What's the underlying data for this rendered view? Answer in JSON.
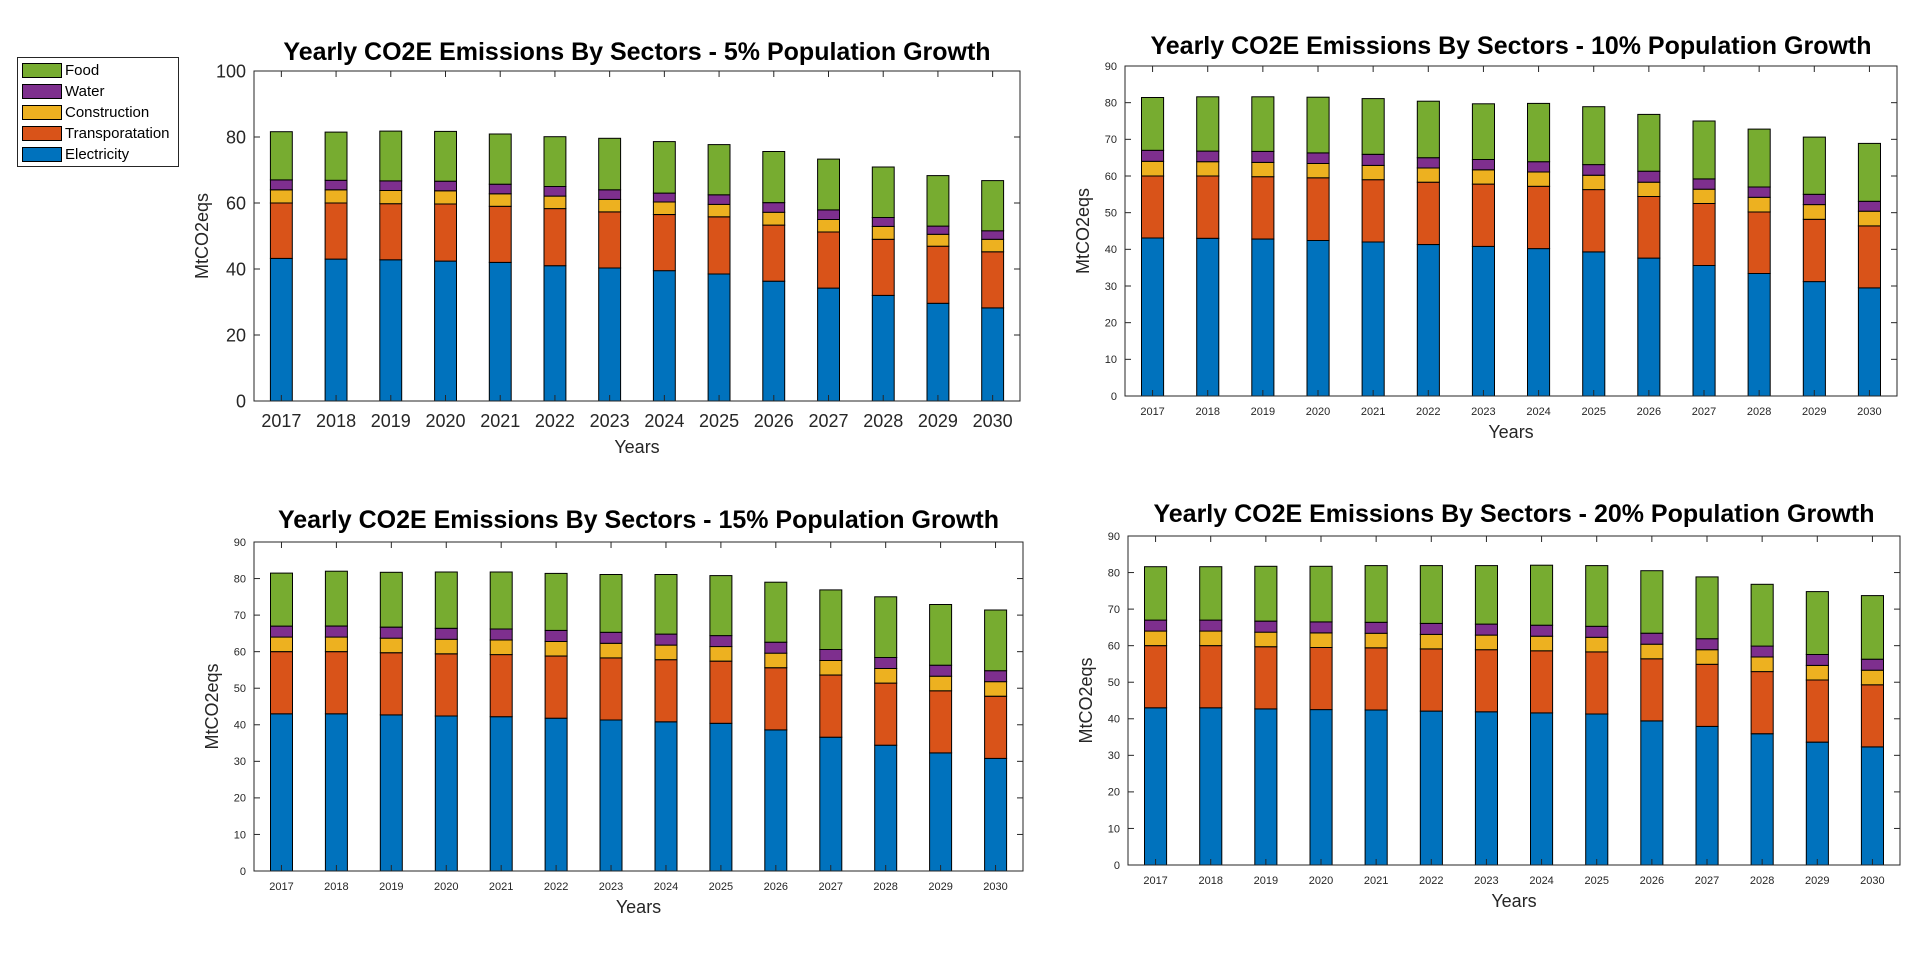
{
  "legend": {
    "items": [
      {
        "label": "Food",
        "color": "#77AC30"
      },
      {
        "label": "Water",
        "color": "#7E2F8E"
      },
      {
        "label": "Construction",
        "color": "#EDB120"
      },
      {
        "label": "Transporatation",
        "color": "#D95319"
      },
      {
        "label": "Electricity",
        "color": "#0072BD"
      }
    ]
  },
  "chart_data": [
    {
      "type": "bar",
      "stacked": true,
      "title": "Yearly CO2E Emissions By Sectors - 5% Population Growth",
      "xlabel": "Years",
      "ylabel": "MtCO2eqs",
      "ylim": [
        0,
        100
      ],
      "yticks": [
        0,
        20,
        40,
        60,
        80,
        100
      ],
      "categories": [
        "2017",
        "2018",
        "2019",
        "2020",
        "2021",
        "2022",
        "2023",
        "2024",
        "2025",
        "2026",
        "2027",
        "2028",
        "2029",
        "2030"
      ],
      "series": [
        {
          "name": "Electricity",
          "color": "#0072BD",
          "values": [
            43.2,
            43.0,
            42.8,
            42.4,
            42.0,
            41.0,
            40.3,
            39.5,
            38.5,
            36.3,
            34.2,
            32.0,
            29.6,
            28.2
          ]
        },
        {
          "name": "Transporatation",
          "color": "#D95319",
          "values": [
            16.8,
            17.0,
            17.0,
            17.3,
            17.0,
            17.3,
            17.0,
            17.0,
            17.3,
            17.0,
            17.0,
            17.0,
            17.3,
            17.0
          ]
        },
        {
          "name": "Construction",
          "color": "#EDB120",
          "values": [
            4.0,
            4.0,
            4.0,
            4.0,
            3.8,
            3.8,
            3.8,
            3.8,
            3.8,
            3.9,
            3.8,
            3.9,
            3.6,
            3.8
          ]
        },
        {
          "name": "Water",
          "color": "#7E2F8E",
          "values": [
            3.0,
            2.9,
            2.9,
            2.9,
            2.9,
            2.9,
            2.9,
            2.7,
            2.9,
            2.9,
            2.9,
            2.7,
            2.5,
            2.6
          ]
        },
        {
          "name": "Food",
          "color": "#77AC30",
          "values": [
            14.6,
            14.6,
            15.1,
            15.1,
            15.2,
            15.1,
            15.6,
            15.6,
            15.2,
            15.5,
            15.4,
            15.3,
            15.3,
            15.2
          ]
        }
      ]
    },
    {
      "type": "bar",
      "stacked": true,
      "title": "Yearly CO2E Emissions By Sectors - 10% Population Growth",
      "xlabel": "Years",
      "ylabel": "MtCO2eqs",
      "ylim": [
        0,
        90
      ],
      "yticks": [
        0,
        10,
        20,
        30,
        40,
        50,
        60,
        70,
        80,
        90
      ],
      "categories": [
        "2017",
        "2018",
        "2019",
        "2020",
        "2021",
        "2022",
        "2023",
        "2024",
        "2025",
        "2026",
        "2027",
        "2028",
        "2029",
        "2030"
      ],
      "series": [
        {
          "name": "Electricity",
          "color": "#0072BD",
          "values": [
            43.1,
            43.0,
            42.8,
            42.4,
            42.0,
            41.3,
            40.8,
            40.2,
            39.3,
            37.6,
            35.6,
            33.4,
            31.2,
            29.5
          ]
        },
        {
          "name": "Transporatation",
          "color": "#D95319",
          "values": [
            16.9,
            17.0,
            17.0,
            17.1,
            17.0,
            17.0,
            17.0,
            17.0,
            17.0,
            16.8,
            16.9,
            16.8,
            17.0,
            16.9
          ]
        },
        {
          "name": "Construction",
          "color": "#EDB120",
          "values": [
            4.0,
            3.9,
            3.9,
            3.9,
            3.9,
            3.9,
            3.9,
            3.9,
            3.9,
            3.9,
            3.9,
            4.0,
            4.0,
            4.0
          ]
        },
        {
          "name": "Water",
          "color": "#7E2F8E",
          "values": [
            3.0,
            2.9,
            3.0,
            2.9,
            3.0,
            2.8,
            2.8,
            2.8,
            2.9,
            3.0,
            2.8,
            2.8,
            2.8,
            2.7
          ]
        },
        {
          "name": "Food",
          "color": "#77AC30",
          "values": [
            14.4,
            14.8,
            14.9,
            15.2,
            15.2,
            15.4,
            15.2,
            15.9,
            15.8,
            15.5,
            15.8,
            15.8,
            15.6,
            15.8
          ]
        }
      ]
    },
    {
      "type": "bar",
      "stacked": true,
      "title": "Yearly CO2E Emissions By Sectors - 15% Population Growth",
      "xlabel": "Years",
      "ylabel": "MtCO2eqs",
      "ylim": [
        0,
        90
      ],
      "yticks": [
        0,
        10,
        20,
        30,
        40,
        50,
        60,
        70,
        80,
        90
      ],
      "categories": [
        "2017",
        "2018",
        "2019",
        "2020",
        "2021",
        "2022",
        "2023",
        "2024",
        "2025",
        "2026",
        "2027",
        "2028",
        "2029",
        "2030"
      ],
      "series": [
        {
          "name": "Electricity",
          "color": "#0072BD",
          "values": [
            43.0,
            43.0,
            42.7,
            42.4,
            42.2,
            41.8,
            41.3,
            40.8,
            40.4,
            38.6,
            36.6,
            34.4,
            32.3,
            30.8
          ]
        },
        {
          "name": "Transporatation",
          "color": "#D95319",
          "values": [
            17.0,
            17.0,
            17.0,
            17.0,
            17.0,
            17.0,
            17.0,
            17.0,
            17.0,
            17.0,
            17.0,
            17.0,
            17.0,
            17.0
          ]
        },
        {
          "name": "Construction",
          "color": "#EDB120",
          "values": [
            4.0,
            4.0,
            4.0,
            4.0,
            4.0,
            4.0,
            4.0,
            4.0,
            4.0,
            4.0,
            4.0,
            4.0,
            4.0,
            4.0
          ]
        },
        {
          "name": "Water",
          "color": "#7E2F8E",
          "values": [
            3.0,
            3.0,
            3.0,
            3.0,
            3.0,
            3.0,
            3.0,
            3.0,
            3.0,
            3.0,
            3.0,
            3.0,
            3.0,
            3.0
          ]
        },
        {
          "name": "Food",
          "color": "#77AC30",
          "values": [
            14.5,
            15.0,
            15.0,
            15.4,
            15.6,
            15.6,
            15.8,
            16.3,
            16.4,
            16.4,
            16.3,
            16.6,
            16.6,
            16.6
          ]
        }
      ]
    },
    {
      "type": "bar",
      "stacked": true,
      "title": "Yearly CO2E Emissions By Sectors - 20% Population Growth",
      "xlabel": "Years",
      "ylabel": "MtCO2eqs",
      "ylim": [
        0,
        90
      ],
      "yticks": [
        0,
        10,
        20,
        30,
        40,
        50,
        60,
        70,
        80,
        90
      ],
      "categories": [
        "2017",
        "2018",
        "2019",
        "2020",
        "2021",
        "2022",
        "2023",
        "2024",
        "2025",
        "2026",
        "2027",
        "2028",
        "2029",
        "2030"
      ],
      "series": [
        {
          "name": "Electricity",
          "color": "#0072BD",
          "values": [
            43.0,
            43.0,
            42.7,
            42.5,
            42.4,
            42.1,
            41.9,
            41.6,
            41.3,
            39.4,
            37.9,
            35.9,
            33.6,
            32.3
          ]
        },
        {
          "name": "Transporatation",
          "color": "#D95319",
          "values": [
            17.0,
            17.0,
            17.0,
            17.0,
            17.0,
            17.0,
            17.0,
            17.0,
            17.0,
            17.0,
            17.0,
            17.0,
            17.0,
            17.0
          ]
        },
        {
          "name": "Construction",
          "color": "#EDB120",
          "values": [
            4.0,
            4.0,
            4.0,
            4.0,
            4.0,
            4.0,
            4.0,
            4.0,
            4.0,
            4.0,
            4.0,
            4.0,
            4.0,
            4.0
          ]
        },
        {
          "name": "Water",
          "color": "#7E2F8E",
          "values": [
            3.0,
            3.0,
            3.0,
            3.0,
            3.0,
            3.0,
            3.0,
            3.0,
            3.0,
            3.0,
            3.0,
            3.0,
            3.0,
            3.0
          ]
        },
        {
          "name": "Food",
          "color": "#77AC30",
          "values": [
            14.6,
            14.6,
            15.0,
            15.2,
            15.5,
            15.8,
            16.0,
            16.4,
            16.6,
            17.1,
            16.9,
            16.9,
            17.2,
            17.4
          ]
        }
      ]
    }
  ]
}
